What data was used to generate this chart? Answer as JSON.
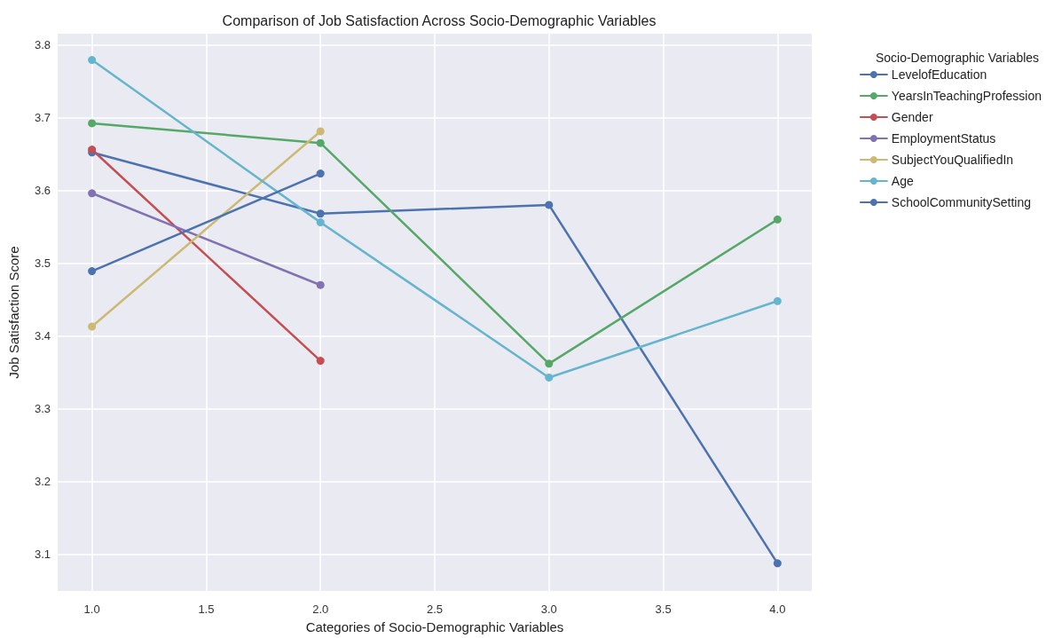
{
  "chart_data": {
    "type": "line",
    "title": "Comparison of Job Satisfaction Across Socio-Demographic Variables",
    "xlabel": "Categories of Socio-Demographic Variables",
    "ylabel": "Job Satisfaction Score",
    "legend_title": "Socio-Demographic Variables",
    "legend": "right",
    "grid": true,
    "marker": "circle",
    "line_style": "solid",
    "xlim": [
      0.85,
      4.15
    ],
    "xticks": [
      {
        "value": 1,
        "label": "1.0"
      },
      {
        "value": 1.5,
        "label": "1.5"
      },
      {
        "value": 2,
        "label": "2.0"
      },
      {
        "value": 2.5,
        "label": "2.5"
      },
      {
        "value": 3,
        "label": "3.0"
      },
      {
        "value": 3.5,
        "label": "3.5"
      },
      {
        "value": 4,
        "label": "4.0"
      }
    ],
    "ylim": [
      3.05,
      3.815
    ],
    "yticks": [
      3.1,
      3.2,
      3.3,
      3.4,
      3.5,
      3.6,
      3.7,
      3.8
    ],
    "series": [
      {
        "name": "LevelofEducation",
        "color": "#4c72b0",
        "x": [
          1,
          2,
          3,
          4
        ],
        "values": [
          3.652,
          3.568,
          3.58,
          3.088
        ]
      },
      {
        "name": "YearsInTeachingProfession",
        "color": "#55a868",
        "x": [
          1,
          2,
          3,
          4
        ],
        "values": [
          3.692,
          3.665,
          3.362,
          3.56
        ]
      },
      {
        "name": "Gender",
        "color": "#c44e52",
        "x": [
          1,
          2
        ],
        "values": [
          3.656,
          3.366
        ]
      },
      {
        "name": "EmploymentStatus",
        "color": "#8172b2",
        "x": [
          1,
          2
        ],
        "values": [
          3.596,
          3.47
        ]
      },
      {
        "name": "SubjectYouQualifiedIn",
        "color": "#ccb974",
        "x": [
          1,
          2
        ],
        "values": [
          3.413,
          3.681
        ]
      },
      {
        "name": "Age",
        "color": "#64b5cd",
        "x": [
          1,
          2,
          3,
          4
        ],
        "values": [
          3.779,
          3.556,
          3.343,
          3.448
        ]
      },
      {
        "name": "SchoolCommunitySetting",
        "color": "#4c72b0",
        "x": [
          1,
          2
        ],
        "values": [
          3.489,
          3.623
        ]
      }
    ]
  }
}
